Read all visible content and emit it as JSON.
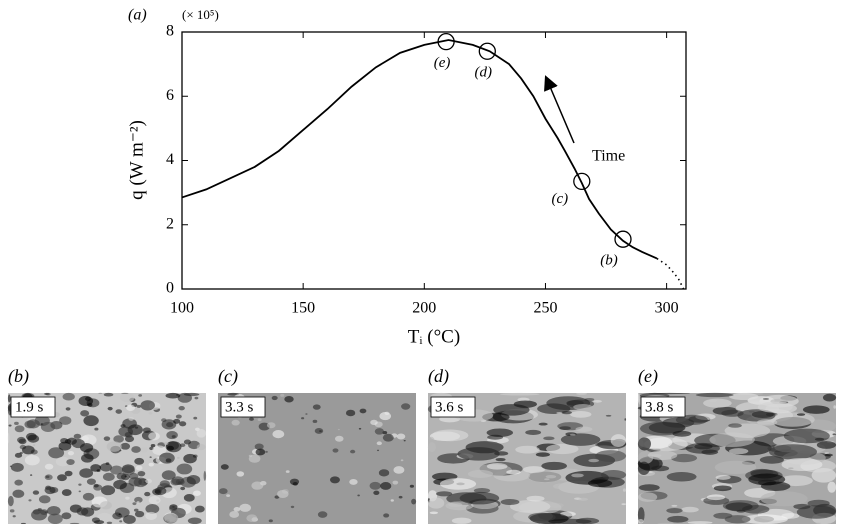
{
  "chart_data": {
    "type": "line",
    "panel_label": "(a)",
    "multiplier": "(× 10⁵)",
    "xlabel": "Tᵢ (°C)",
    "ylabel": "q (W m⁻²)",
    "xlim": [
      100,
      308
    ],
    "ylim": [
      0,
      8
    ],
    "xticks": [
      100,
      150,
      200,
      250,
      300
    ],
    "yticks": [
      0,
      2,
      4,
      6,
      8
    ],
    "color": "#000000",
    "series": [
      {
        "style": "solid",
        "x": [
          100,
          110,
          120,
          130,
          140,
          150,
          160,
          170,
          180,
          190,
          200,
          210,
          220,
          227,
          235,
          240,
          245,
          250,
          255,
          258,
          262,
          265,
          268,
          272,
          277,
          282,
          286,
          290,
          296
        ],
        "values": [
          2.85,
          3.1,
          3.45,
          3.8,
          4.3,
          4.95,
          5.6,
          6.3,
          6.9,
          7.35,
          7.6,
          7.75,
          7.6,
          7.4,
          7.0,
          6.55,
          6.0,
          5.3,
          4.7,
          4.3,
          3.75,
          3.3,
          2.8,
          2.35,
          1.85,
          1.5,
          1.3,
          1.15,
          0.95
        ]
      },
      {
        "style": "dotted",
        "x": [
          296,
          300,
          303,
          305,
          307
        ],
        "values": [
          0.95,
          0.75,
          0.5,
          0.3,
          0
        ]
      }
    ],
    "markers": {
      "x": [
        209,
        226,
        265,
        282
      ],
      "y": [
        7.7,
        7.4,
        3.35,
        1.55
      ],
      "labels": [
        "(e)",
        "(d)",
        "(c)",
        "(b)"
      ]
    },
    "annotation": "Time"
  },
  "panels": [
    {
      "label": "(b)",
      "time": "1.9 s"
    },
    {
      "label": "(c)",
      "time": "3.3 s"
    },
    {
      "label": "(d)",
      "time": "3.6 s"
    },
    {
      "label": "(e)",
      "time": "3.8 s"
    }
  ]
}
